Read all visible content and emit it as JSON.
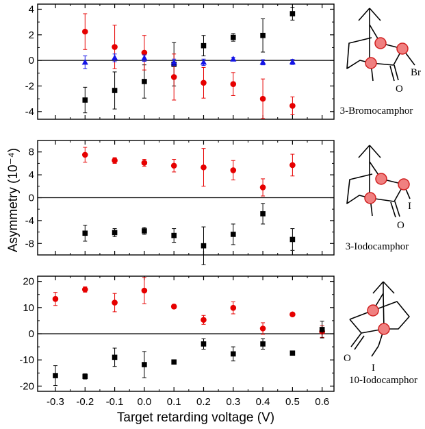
{
  "colors": {
    "black": "#000000",
    "red": "#e60000",
    "blue": "#1414e6",
    "atom_fill": "#f08080",
    "atom_stroke": "#d02020"
  },
  "x_axis": {
    "label": "Target retarding voltage (V)",
    "ticks": [
      "-0.3",
      "-0.2",
      "-0.1",
      "0.0",
      "0.1",
      "0.2",
      "0.3",
      "0.4",
      "0.5",
      "0.6"
    ],
    "range": [
      -0.36,
      0.64
    ]
  },
  "y_axis_label": "Asymmetry (10⁻⁴)",
  "chart_data": [
    {
      "type": "scatter",
      "label": "3-Bromocamphor",
      "ylim": [
        -4.6,
        4.4
      ],
      "yticks": [
        "4",
        "2",
        "0",
        "-2",
        "-4"
      ],
      "ytick_values": [
        4,
        2,
        0,
        -2,
        -4
      ],
      "series": [
        {
          "color": "#000000",
          "marker": "square",
          "x": [
            -0.2,
            -0.1,
            0.0,
            0.1,
            0.2,
            0.3,
            0.4,
            0.5
          ],
          "y": [
            -3.1,
            -2.35,
            -1.65,
            -0.3,
            1.15,
            1.8,
            1.95,
            3.65
          ],
          "err": [
            1.0,
            1.45,
            1.3,
            1.7,
            0.8,
            0.3,
            1.3,
            0.5
          ]
        },
        {
          "color": "#e60000",
          "marker": "circle",
          "x": [
            -0.2,
            -0.1,
            0.0,
            0.1,
            0.2,
            0.3,
            0.4,
            0.5
          ],
          "y": [
            2.25,
            1.05,
            0.6,
            -1.3,
            -1.75,
            -1.85,
            -3.0,
            -3.55
          ],
          "err": [
            1.4,
            1.7,
            1.35,
            1.8,
            1.2,
            0.9,
            1.55,
            0.7
          ]
        },
        {
          "color": "#1414e6",
          "marker": "triangle",
          "x": [
            -0.2,
            -0.1,
            0.0,
            0.1,
            0.2,
            0.3,
            0.4,
            0.5
          ],
          "y": [
            -0.15,
            0.2,
            0.18,
            -0.15,
            -0.15,
            0.1,
            -0.15,
            -0.12
          ],
          "err": [
            0.5,
            0.3,
            0.25,
            0.25,
            0.25,
            0.15,
            0.2,
            0.2
          ]
        }
      ]
    },
    {
      "type": "scatter",
      "label": "3-Iodocamphor",
      "ylim": [
        -10,
        10
      ],
      "yticks": [
        "8",
        "4",
        "0",
        "-4",
        "-8"
      ],
      "ytick_values": [
        8,
        4,
        0,
        -4,
        -8
      ],
      "series": [
        {
          "color": "#e60000",
          "marker": "circle",
          "x": [
            -0.2,
            -0.1,
            0.0,
            0.1,
            0.2,
            0.3,
            0.4,
            0.5
          ],
          "y": [
            7.5,
            6.5,
            6.1,
            5.6,
            5.3,
            4.8,
            1.8,
            5.7
          ],
          "err": [
            1.3,
            0.5,
            0.6,
            1.1,
            3.3,
            1.7,
            1.5,
            1.9
          ]
        },
        {
          "color": "#000000",
          "marker": "square",
          "x": [
            -0.2,
            -0.1,
            0.0,
            0.1,
            0.2,
            0.3,
            0.4,
            0.5
          ],
          "y": [
            -6.2,
            -6.1,
            -5.8,
            -6.6,
            -8.4,
            -6.4,
            -2.8,
            -7.3
          ],
          "err": [
            1.4,
            0.7,
            0.6,
            1.2,
            3.3,
            1.8,
            1.8,
            1.9
          ]
        }
      ]
    },
    {
      "type": "scatter",
      "label": "10-Iodocamphor",
      "ylim": [
        -22,
        22
      ],
      "yticks": [
        "20",
        "10",
        "0",
        "-10",
        "-20"
      ],
      "ytick_values": [
        20,
        10,
        0,
        -10,
        -20
      ],
      "series": [
        {
          "color": "#e60000",
          "marker": "circle",
          "x": [
            -0.3,
            -0.2,
            -0.1,
            0.0,
            0.1,
            0.2,
            0.3,
            0.4,
            0.5,
            0.6
          ],
          "y": [
            13.3,
            16.9,
            11.9,
            16.5,
            10.4,
            5.3,
            9.9,
            2.0,
            7.4,
            0.8
          ],
          "err": [
            2.5,
            1.0,
            3.5,
            5.0,
            0.8,
            1.7,
            2.3,
            2.2,
            0.6,
            2.2
          ]
        },
        {
          "color": "#000000",
          "marker": "square",
          "x": [
            -0.3,
            -0.2,
            -0.1,
            0.0,
            0.1,
            0.2,
            0.3,
            0.4,
            0.5,
            0.6
          ],
          "y": [
            -16.0,
            -16.3,
            -9.0,
            -11.8,
            -10.8,
            -3.9,
            -7.7,
            -3.9,
            -7.4,
            1.6
          ],
          "err": [
            3.8,
            1.0,
            3.5,
            5.0,
            0.8,
            2.0,
            2.7,
            2.0,
            0.6,
            3.2
          ]
        }
      ]
    }
  ],
  "molecules": [
    {
      "name": "3-Bromocamphor",
      "substituent": "Br",
      "oxygen": "O"
    },
    {
      "name": "3-Iodocamphor",
      "substituent": "I",
      "oxygen": "O"
    },
    {
      "name": "10-Iodocamphor",
      "substituent": "I",
      "oxygen": "O"
    }
  ]
}
